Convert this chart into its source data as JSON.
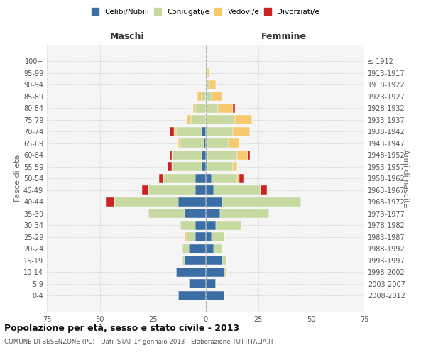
{
  "age_groups": [
    "0-4",
    "5-9",
    "10-14",
    "15-19",
    "20-24",
    "25-29",
    "30-34",
    "35-39",
    "40-44",
    "45-49",
    "50-54",
    "55-59",
    "60-64",
    "65-69",
    "70-74",
    "75-79",
    "80-84",
    "85-89",
    "90-94",
    "95-99",
    "100+"
  ],
  "birth_years": [
    "2008-2012",
    "2003-2007",
    "1998-2002",
    "1993-1997",
    "1988-1992",
    "1983-1987",
    "1978-1982",
    "1973-1977",
    "1968-1972",
    "1963-1967",
    "1958-1962",
    "1953-1957",
    "1948-1952",
    "1943-1947",
    "1938-1942",
    "1933-1937",
    "1928-1932",
    "1923-1927",
    "1918-1922",
    "1913-1917",
    "≤ 1912"
  ],
  "male": {
    "celibi": [
      13,
      8,
      14,
      10,
      8,
      5,
      5,
      10,
      13,
      5,
      5,
      2,
      2,
      1,
      2,
      0,
      0,
      0,
      0,
      0,
      0
    ],
    "coniugati": [
      0,
      0,
      0,
      1,
      3,
      4,
      7,
      17,
      30,
      22,
      15,
      14,
      14,
      11,
      12,
      7,
      5,
      2,
      0,
      0,
      0
    ],
    "vedovi": [
      0,
      0,
      0,
      0,
      0,
      1,
      0,
      0,
      0,
      0,
      0,
      0,
      0,
      1,
      1,
      2,
      1,
      2,
      0,
      0,
      0
    ],
    "divorziati": [
      0,
      0,
      0,
      0,
      0,
      0,
      0,
      0,
      4,
      3,
      2,
      2,
      1,
      0,
      2,
      0,
      0,
      0,
      0,
      0,
      0
    ]
  },
  "female": {
    "nubili": [
      9,
      5,
      9,
      8,
      4,
      3,
      5,
      7,
      8,
      4,
      3,
      1,
      1,
      0,
      0,
      0,
      0,
      0,
      0,
      0,
      0
    ],
    "coniugate": [
      0,
      0,
      1,
      2,
      4,
      6,
      12,
      23,
      37,
      22,
      12,
      12,
      14,
      11,
      13,
      14,
      6,
      3,
      2,
      1,
      0
    ],
    "vedove": [
      0,
      0,
      0,
      0,
      0,
      0,
      0,
      0,
      0,
      0,
      1,
      2,
      5,
      5,
      8,
      8,
      7,
      5,
      3,
      1,
      0
    ],
    "divorziate": [
      0,
      0,
      0,
      0,
      0,
      0,
      0,
      0,
      0,
      3,
      2,
      0,
      1,
      0,
      0,
      0,
      1,
      0,
      0,
      0,
      0
    ]
  },
  "colors": {
    "celibi": "#3a6ea5",
    "coniugati": "#c5d9a0",
    "vedovi": "#f7c96e",
    "divorziati": "#cc2222"
  },
  "title": "Popolazione per età, sesso e stato civile - 2013",
  "subtitle": "COMUNE DI BESENZONE (PC) - Dati ISTAT 1° gennaio 2013 - Elaborazione TUTTITALIA.IT",
  "ylabel_left": "Fasce di età",
  "ylabel_right": "Anni di nascita",
  "xlabel_left": "Maschi",
  "xlabel_right": "Femmine",
  "xlim": 75,
  "bg_color": "#f5f5f5",
  "grid_color": "#cccccc"
}
